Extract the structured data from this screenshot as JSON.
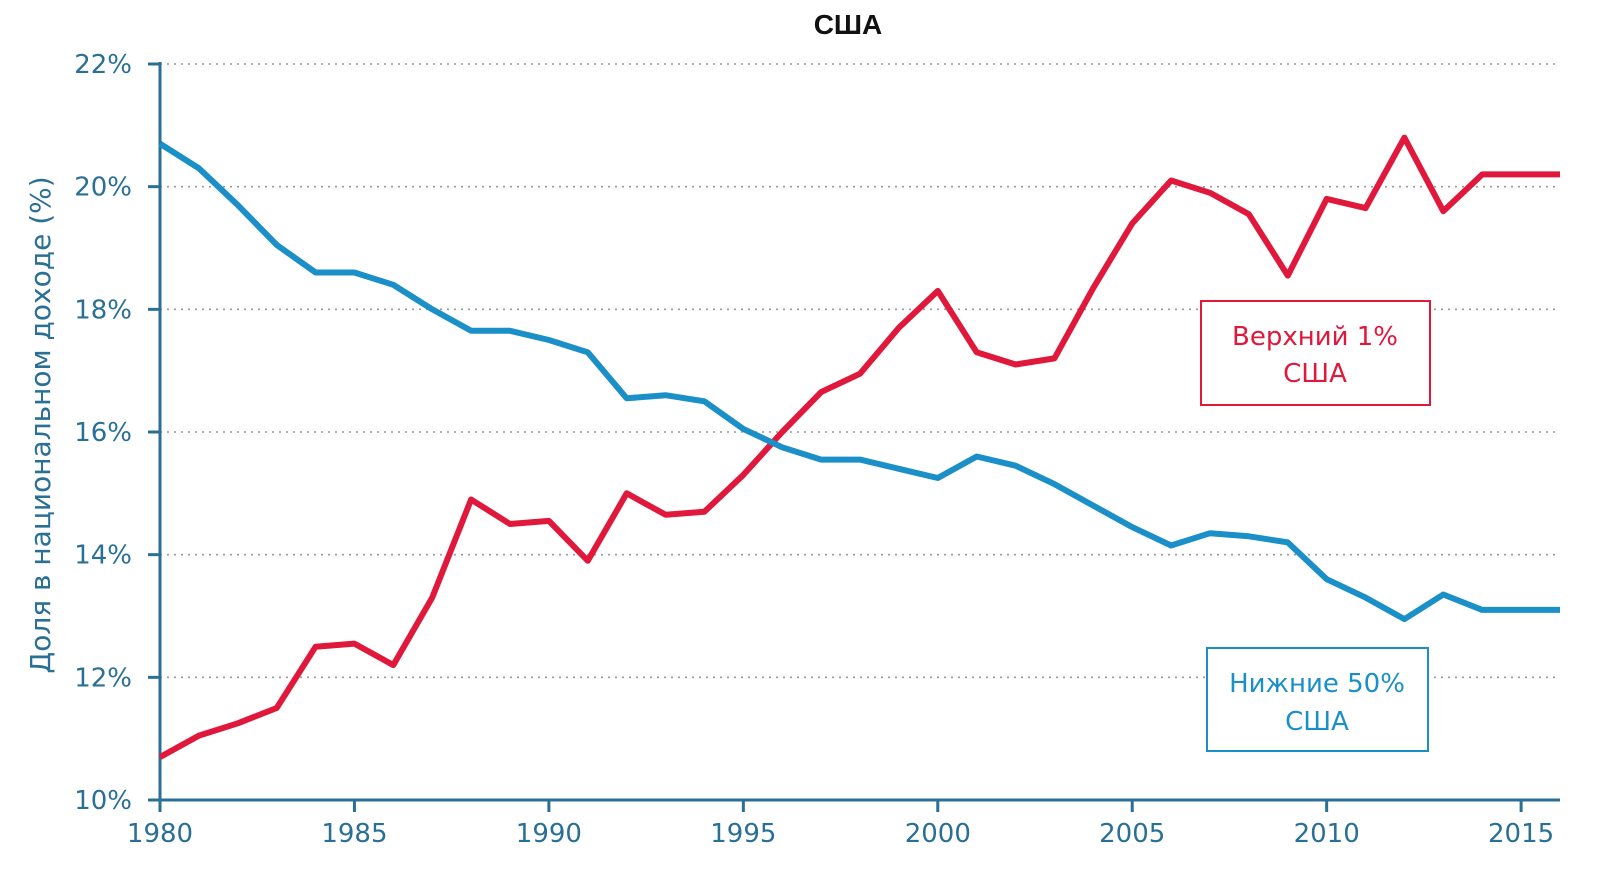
{
  "chart_data": {
    "type": "line",
    "title": "США",
    "ylabel": "Доля в национальном доходе (%)",
    "xlabel": "",
    "xlim": [
      1980,
      2016
    ],
    "ylim": [
      10,
      22
    ],
    "yticks": [
      10,
      12,
      14,
      16,
      18,
      20,
      22
    ],
    "ytick_labels": [
      "10%",
      "12%",
      "14%",
      "16%",
      "18%",
      "20%",
      "22%"
    ],
    "xticks": [
      1980,
      1985,
      1990,
      1995,
      2000,
      2005,
      2010,
      2015
    ],
    "xtick_labels": [
      "1980",
      "1985",
      "1990",
      "1995",
      "2000",
      "2005",
      "2010",
      "2015"
    ],
    "grid": "horizontal dotted",
    "x": [
      1980,
      1981,
      1982,
      1983,
      1984,
      1985,
      1986,
      1987,
      1988,
      1989,
      1990,
      1991,
      1992,
      1993,
      1994,
      1995,
      1996,
      1997,
      1998,
      1999,
      2000,
      2001,
      2002,
      2003,
      2004,
      2005,
      2006,
      2007,
      2008,
      2009,
      2010,
      2011,
      2012,
      2013,
      2014,
      2015,
      2016
    ],
    "series": [
      {
        "name": "Верхний 1% США",
        "label_lines": [
          "Верхний 1%",
          "США"
        ],
        "color": "#e0183c",
        "values": [
          10.7,
          11.05,
          11.25,
          11.5,
          12.5,
          12.55,
          12.2,
          13.3,
          14.9,
          14.5,
          14.55,
          13.9,
          15.0,
          14.65,
          14.7,
          15.3,
          16.0,
          16.65,
          16.95,
          17.7,
          18.3,
          17.3,
          17.1,
          17.2,
          18.35,
          19.4,
          20.1,
          19.9,
          19.55,
          18.55,
          19.8,
          19.65,
          20.8,
          19.6,
          20.2,
          20.2,
          20.2
        ]
      },
      {
        "name": "Нижние 50% США",
        "label_lines": [
          "Нижние 50%",
          "США"
        ],
        "color": "#1b8fc8",
        "values": [
          20.7,
          20.3,
          19.7,
          19.05,
          18.6,
          18.6,
          18.4,
          18.0,
          17.65,
          17.65,
          17.5,
          17.3,
          16.55,
          16.6,
          16.5,
          16.05,
          15.75,
          15.55,
          15.55,
          15.4,
          15.25,
          15.6,
          15.45,
          15.15,
          14.8,
          14.45,
          14.15,
          14.35,
          14.3,
          14.2,
          13.6,
          13.3,
          12.95,
          13.35,
          13.1,
          13.1,
          13.1
        ]
      }
    ]
  }
}
